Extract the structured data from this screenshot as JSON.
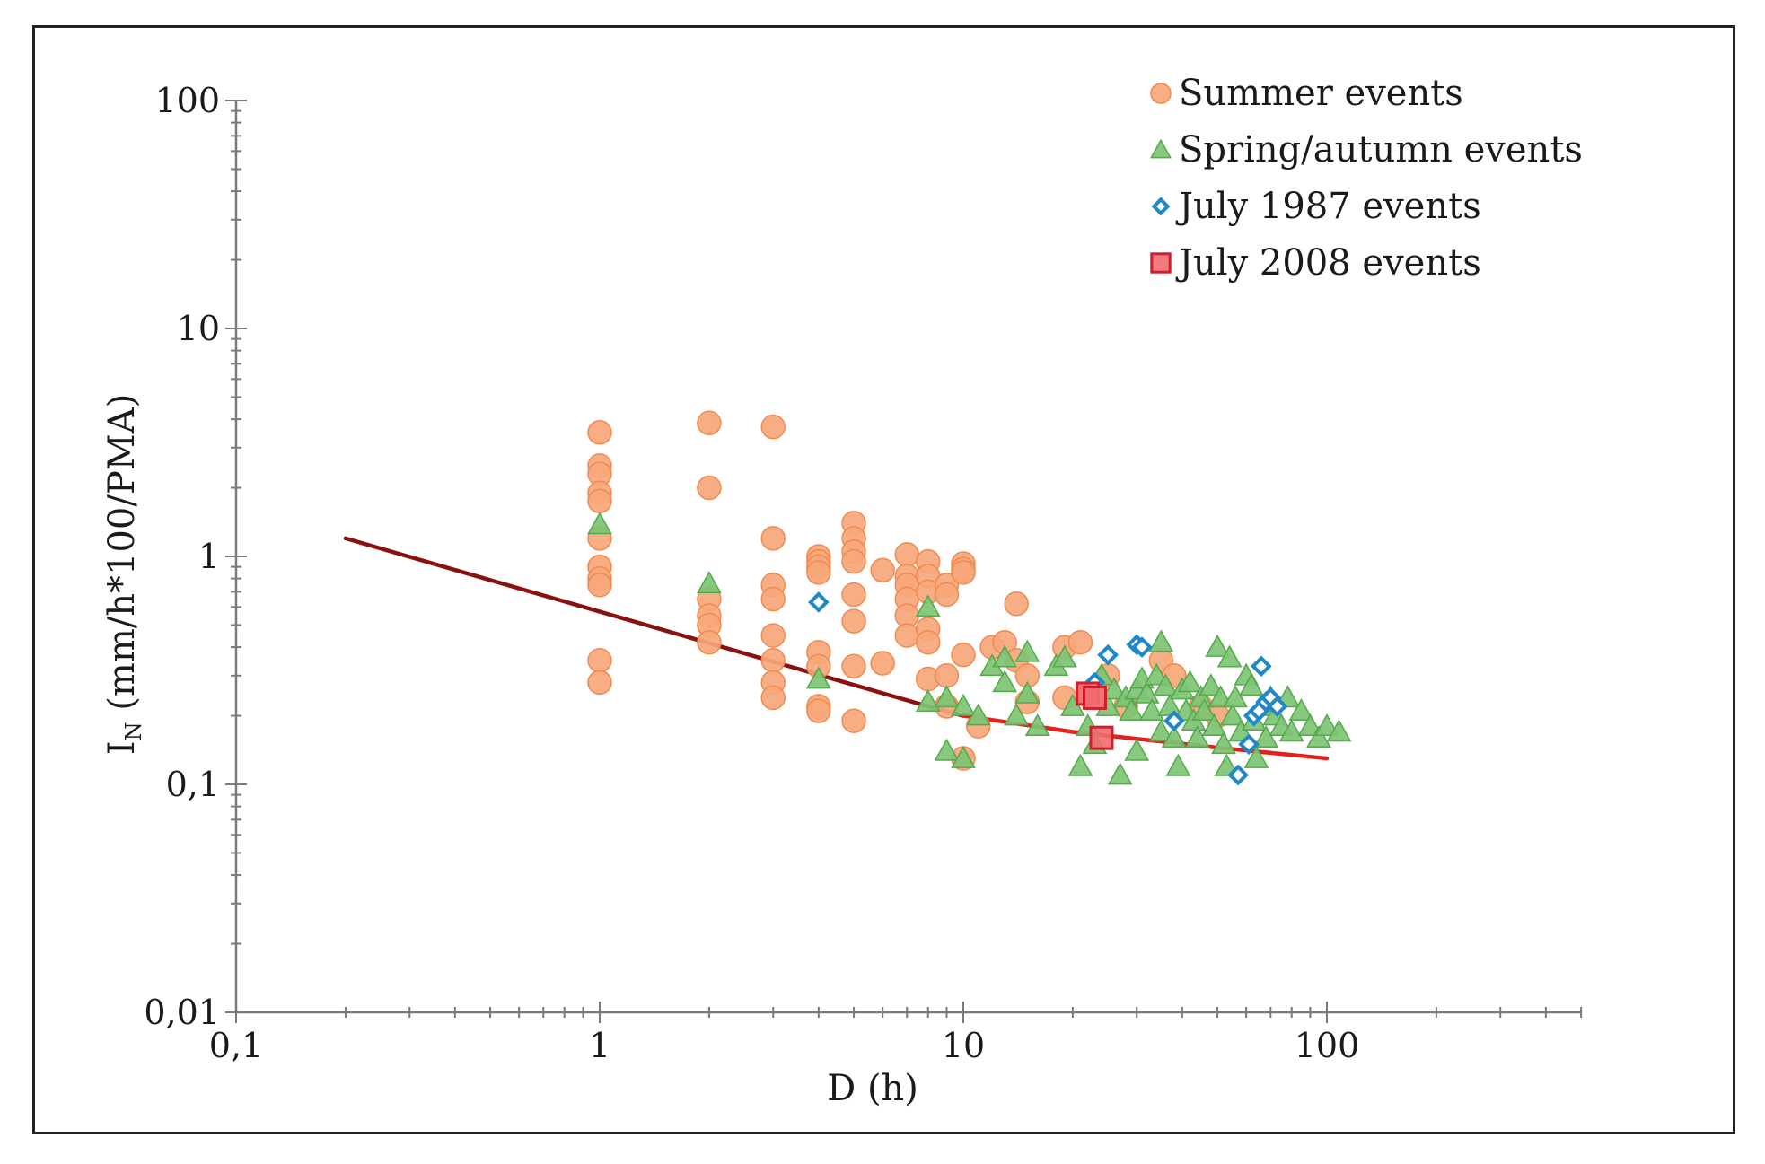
{
  "chart_data": {
    "type": "scatter",
    "xlabel": "D (h)",
    "ylabel": {
      "main": "I",
      "sub": "N",
      "rest": " (mm/h*100/PMA)"
    },
    "x_scale": "log",
    "y_scale": "log",
    "xlim": [
      0.1,
      500
    ],
    "ylim": [
      0.01,
      100
    ],
    "x_ticks": [
      {
        "v": 0.1,
        "label": "0,1"
      },
      {
        "v": 1,
        "label": "1"
      },
      {
        "v": 10,
        "label": "10"
      },
      {
        "v": 100,
        "label": "100"
      }
    ],
    "y_ticks": [
      {
        "v": 0.01,
        "label": "0,01"
      },
      {
        "v": 0.1,
        "label": "0,1"
      },
      {
        "v": 1,
        "label": "1"
      },
      {
        "v": 10,
        "label": "10"
      },
      {
        "v": 100,
        "label": "100"
      }
    ],
    "grid": false,
    "legend_position": "top-right",
    "series": [
      {
        "name": "Summer events",
        "marker": "circle",
        "color": "#f7a77a",
        "stroke": "#f08a4f",
        "points": [
          [
            1,
            3.5
          ],
          [
            1,
            2.5
          ],
          [
            1,
            2.3
          ],
          [
            1,
            1.9
          ],
          [
            1,
            1.75
          ],
          [
            1,
            1.2
          ],
          [
            1,
            0.9
          ],
          [
            1,
            0.8
          ],
          [
            1,
            0.75
          ],
          [
            1,
            0.35
          ],
          [
            1,
            0.28
          ],
          [
            2,
            3.85
          ],
          [
            2,
            2.0
          ],
          [
            2,
            0.65
          ],
          [
            2,
            0.55
          ],
          [
            2,
            0.5
          ],
          [
            2,
            0.42
          ],
          [
            3,
            3.7
          ],
          [
            3,
            1.2
          ],
          [
            3,
            0.75
          ],
          [
            3,
            0.65
          ],
          [
            3,
            0.45
          ],
          [
            3,
            0.35
          ],
          [
            3,
            0.28
          ],
          [
            3,
            0.24
          ],
          [
            4,
            1.0
          ],
          [
            4,
            0.95
          ],
          [
            4,
            0.9
          ],
          [
            4,
            0.85
          ],
          [
            4,
            0.38
          ],
          [
            4,
            0.33
          ],
          [
            4,
            0.22
          ],
          [
            4,
            0.21
          ],
          [
            5,
            1.4
          ],
          [
            5,
            1.2
          ],
          [
            5,
            1.05
          ],
          [
            5,
            0.95
          ],
          [
            5,
            0.68
          ],
          [
            5,
            0.52
          ],
          [
            5,
            0.33
          ],
          [
            5,
            0.19
          ],
          [
            6,
            0.87
          ],
          [
            6,
            0.34
          ],
          [
            7,
            1.02
          ],
          [
            7,
            0.82
          ],
          [
            7,
            0.75
          ],
          [
            7,
            0.65
          ],
          [
            7,
            0.55
          ],
          [
            7,
            0.45
          ],
          [
            8,
            0.95
          ],
          [
            8,
            0.82
          ],
          [
            8,
            0.7
          ],
          [
            8,
            0.48
          ],
          [
            8,
            0.42
          ],
          [
            8,
            0.29
          ],
          [
            9,
            0.75
          ],
          [
            9,
            0.68
          ],
          [
            9,
            0.3
          ],
          [
            9,
            0.22
          ],
          [
            10,
            0.93
          ],
          [
            10,
            0.88
          ],
          [
            10,
            0.85
          ],
          [
            10,
            0.37
          ],
          [
            10,
            0.13
          ],
          [
            11,
            0.18
          ],
          [
            12,
            0.4
          ],
          [
            13,
            0.42
          ],
          [
            14,
            0.62
          ],
          [
            14,
            0.35
          ],
          [
            15,
            0.3
          ],
          [
            15,
            0.23
          ],
          [
            19,
            0.4
          ],
          [
            19,
            0.24
          ],
          [
            21,
            0.42
          ],
          [
            22,
            0.25
          ],
          [
            25,
            0.3
          ],
          [
            28,
            0.22
          ],
          [
            35,
            0.35
          ],
          [
            38,
            0.3
          ],
          [
            45,
            0.22
          ],
          [
            50,
            0.2
          ]
        ]
      },
      {
        "name": "Spring/autumn events",
        "marker": "triangle",
        "color": "#7dc474",
        "stroke": "#55a84c",
        "points": [
          [
            1,
            1.38
          ],
          [
            2,
            0.76
          ],
          [
            4,
            0.29
          ],
          [
            8,
            0.6
          ],
          [
            8,
            0.23
          ],
          [
            9,
            0.24
          ],
          [
            9,
            0.14
          ],
          [
            10,
            0.22
          ],
          [
            10,
            0.13
          ],
          [
            11,
            0.2
          ],
          [
            12,
            0.33
          ],
          [
            13,
            0.36
          ],
          [
            13,
            0.28
          ],
          [
            14,
            0.2
          ],
          [
            15,
            0.38
          ],
          [
            15,
            0.25
          ],
          [
            16,
            0.18
          ],
          [
            18,
            0.33
          ],
          [
            19,
            0.36
          ],
          [
            20,
            0.22
          ],
          [
            21,
            0.12
          ],
          [
            22,
            0.18
          ],
          [
            23,
            0.15
          ],
          [
            24,
            0.3
          ],
          [
            25,
            0.22
          ],
          [
            26,
            0.26
          ],
          [
            27,
            0.11
          ],
          [
            28,
            0.24
          ],
          [
            29,
            0.21
          ],
          [
            30,
            0.26
          ],
          [
            30,
            0.14
          ],
          [
            31,
            0.29
          ],
          [
            32,
            0.25
          ],
          [
            33,
            0.21
          ],
          [
            34,
            0.3
          ],
          [
            35,
            0.17
          ],
          [
            35,
            0.42
          ],
          [
            36,
            0.27
          ],
          [
            37,
            0.22
          ],
          [
            38,
            0.16
          ],
          [
            39,
            0.12
          ],
          [
            40,
            0.26
          ],
          [
            41,
            0.21
          ],
          [
            42,
            0.28
          ],
          [
            43,
            0.19
          ],
          [
            44,
            0.16
          ],
          [
            45,
            0.24
          ],
          [
            46,
            0.21
          ],
          [
            48,
            0.27
          ],
          [
            49,
            0.18
          ],
          [
            50,
            0.4
          ],
          [
            51,
            0.24
          ],
          [
            52,
            0.15
          ],
          [
            53,
            0.12
          ],
          [
            54,
            0.36
          ],
          [
            55,
            0.2
          ],
          [
            56,
            0.24
          ],
          [
            58,
            0.17
          ],
          [
            60,
            0.3
          ],
          [
            62,
            0.27
          ],
          [
            63,
            0.19
          ],
          [
            64,
            0.13
          ],
          [
            66,
            0.22
          ],
          [
            68,
            0.16
          ],
          [
            70,
            0.24
          ],
          [
            72,
            0.2
          ],
          [
            75,
            0.18
          ],
          [
            78,
            0.24
          ],
          [
            80,
            0.17
          ],
          [
            85,
            0.21
          ],
          [
            90,
            0.18
          ],
          [
            95,
            0.16
          ],
          [
            100,
            0.18
          ],
          [
            108,
            0.17
          ]
        ]
      },
      {
        "name": "July 1987 events",
        "marker": "diamond",
        "color": "#ffffff",
        "stroke": "#1e88c8",
        "points": [
          [
            4,
            0.63
          ],
          [
            23,
            0.28
          ],
          [
            25,
            0.37
          ],
          [
            30,
            0.41
          ],
          [
            31,
            0.4
          ],
          [
            38,
            0.19
          ],
          [
            57,
            0.11
          ],
          [
            61,
            0.15
          ],
          [
            63,
            0.2
          ],
          [
            65,
            0.21
          ],
          [
            66,
            0.33
          ],
          [
            68,
            0.23
          ],
          [
            70,
            0.24
          ],
          [
            73,
            0.22
          ]
        ]
      },
      {
        "name": "July 2008 events",
        "marker": "square",
        "color": "#f26a70",
        "stroke": "#d01f2a",
        "points": [
          [
            22,
            0.25
          ],
          [
            23,
            0.24
          ],
          [
            24,
            0.16
          ]
        ]
      }
    ],
    "lines": [
      {
        "color": "#8b1010",
        "points": [
          [
            0.2,
            1.2
          ],
          [
            8,
            0.22
          ],
          [
            10,
            0.2
          ]
        ]
      },
      {
        "color": "#e3201b",
        "points": [
          [
            10,
            0.2
          ],
          [
            20,
            0.17
          ],
          [
            50,
            0.145
          ],
          [
            100,
            0.13
          ]
        ]
      }
    ]
  }
}
